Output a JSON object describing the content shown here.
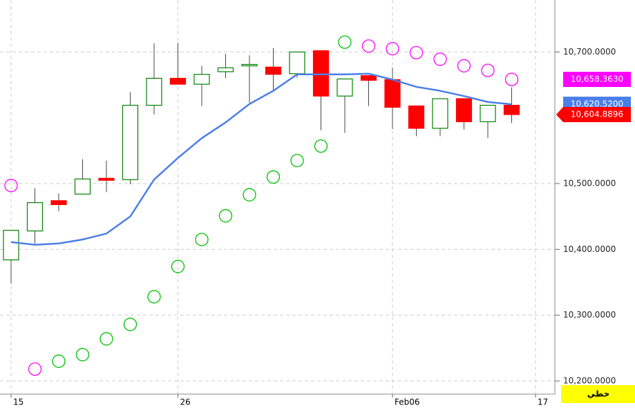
{
  "chart_data": {
    "type": "candlestick",
    "categories": [
      "15",
      null,
      null,
      null,
      null,
      null,
      null,
      "26",
      null,
      null,
      null,
      null,
      null,
      null,
      null,
      null,
      "Feb06",
      null,
      null,
      null,
      null,
      null,
      "17"
    ],
    "open": [
      10384,
      10428,
      10474,
      10484,
      10508,
      10506,
      10619,
      10660,
      10651,
      10670,
      10680,
      10677,
      10667,
      10702,
      10633,
      10664,
      10658,
      10618,
      10584,
      10629,
      10594,
      10619,
      null
    ],
    "high": [
      10429,
      10493,
      10485,
      10537,
      10535,
      10639,
      10713,
      10714,
      10679,
      10697,
      10695,
      10706,
      10700,
      10702,
      10659,
      10664,
      10676,
      10618,
      10629,
      10629,
      10619,
      10646,
      null
    ],
    "low": [
      10348,
      10409,
      10458,
      10484,
      10487,
      10499,
      10605,
      10651,
      10618,
      10660,
      10623,
      10642,
      10661,
      10581,
      10577,
      10618,
      10583,
      10572,
      10572,
      10582,
      10569,
      10592,
      null
    ],
    "close": [
      10429,
      10471,
      10468,
      10507,
      10505,
      10619,
      10660,
      10651,
      10666,
      10676,
      10681,
      10666,
      10700,
      10633,
      10659,
      10657,
      10616,
      10584,
      10629,
      10594,
      10619,
      10604.8896,
      null
    ],
    "up_color": "#008000",
    "down_color": "#ff0000",
    "close_label": "10,604.8896",
    "moving_average": {
      "color": "#4a7ee8",
      "label": "10,620.5200",
      "values": [
        10411,
        10407,
        10409,
        10415,
        10424,
        10450,
        10506,
        10539,
        10569,
        10593,
        10621,
        10641,
        10666,
        10666,
        10666,
        10667,
        10658,
        10647,
        10641,
        10633,
        10624,
        10620.52,
        null
      ]
    },
    "parabolic_sar": {
      "label": "10,658.3630",
      "label_color": "#ff00ff",
      "values": [
        10497,
        10218,
        10230,
        10240,
        10264,
        10286,
        10328,
        10374,
        10415,
        10451,
        10483,
        10510,
        10535,
        10557,
        10715,
        10709,
        10705,
        10699,
        10689,
        10679,
        10672,
        10658.363,
        null
      ],
      "colors": [
        "#ff00ff",
        "#ff00ff",
        "#00c000",
        "#00c000",
        "#00c000",
        "#00c000",
        "#00c000",
        "#00c000",
        "#00c000",
        "#00c000",
        "#00c000",
        "#00c000",
        "#00c000",
        "#00c000",
        "#00c000",
        "#ff00ff",
        "#ff00ff",
        "#ff00ff",
        "#ff00ff",
        "#ff00ff",
        "#ff00ff",
        "#ff00ff",
        null
      ]
    },
    "ylim": [
      10180,
      10779
    ],
    "yticks": [
      {
        "value": 10200,
        "label": "10,200.0000"
      },
      {
        "value": 10300,
        "label": "10,300.0000"
      },
      {
        "value": 10400,
        "label": "10,400.0000"
      },
      {
        "value": 10500,
        "label": "10,500.0000"
      },
      {
        "value": 10700,
        "label": "10,700.0000"
      }
    ],
    "grid": true,
    "scale_mode": "خطي"
  }
}
